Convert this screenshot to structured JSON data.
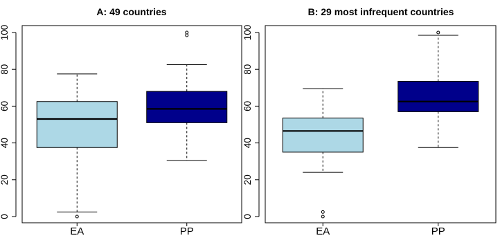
{
  "chart_data": [
    {
      "type": "boxplot",
      "title": "A: 49 countries",
      "xlabel": "",
      "ylabel": "",
      "ylim": [
        0,
        100
      ],
      "yticks": [
        0,
        20,
        40,
        60,
        80,
        100
      ],
      "categories": [
        "EA",
        "PP"
      ],
      "series": [
        {
          "category": "EA",
          "color": "#ADD8E6",
          "whisker_low": 2.5,
          "q1": 37.5,
          "median": 53,
          "q3": 62.5,
          "whisker_high": 77.5,
          "outliers": [
            0
          ]
        },
        {
          "category": "PP",
          "color": "#00008B",
          "whisker_low": 30.5,
          "q1": 51,
          "median": 58.5,
          "q3": 68,
          "whisker_high": 82.5,
          "outliers": [
            98.5,
            100
          ]
        }
      ]
    },
    {
      "type": "boxplot",
      "title": "B: 29 most infrequent countries",
      "xlabel": "",
      "ylabel": "",
      "ylim": [
        0,
        100
      ],
      "yticks": [
        0,
        20,
        40,
        60,
        80,
        100
      ],
      "categories": [
        "EA",
        "PP"
      ],
      "series": [
        {
          "category": "EA",
          "color": "#ADD8E6",
          "whisker_low": 24,
          "q1": 35,
          "median": 46.5,
          "q3": 53.5,
          "whisker_high": 69.5,
          "outliers": [
            0,
            2.5
          ]
        },
        {
          "category": "PP",
          "color": "#00008B",
          "whisker_low": 37.5,
          "q1": 57,
          "median": 62.5,
          "q3": 73.5,
          "whisker_high": 98.5,
          "outliers": [
            100
          ]
        }
      ]
    }
  ]
}
